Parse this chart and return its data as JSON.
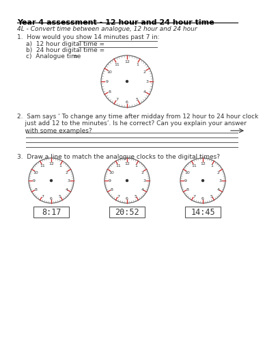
{
  "title": "Year 4 assessment - 12 hour and 24 hour time",
  "subtitle": "4L - Convert time between analogue, 12 hour and 24 hour",
  "q1_text": "1.  How would you show 14 minutes past 7 in:",
  "q1a": "a)  12 hour digital time =",
  "q1b": "b)  24 hour digital time =",
  "q1c": "c)  Analogue time",
  "q2_text": "2.  Sam says ‘ To change any time after midday from 12 hour to 24 hour clock\n    just add 12 to the minutes’. Is he correct? Can you explain your answer\n    with some examples?",
  "q3_text": "3.  Draw a line to match the analogue clocks to the digital times?",
  "digital_times": [
    "8:17",
    "20:52",
    "14:45"
  ],
  "bg_color": "#ffffff",
  "text_color": "#333333",
  "clock_tick_color_main": "#cc3333",
  "clock_tick_color_minor": "#999999"
}
